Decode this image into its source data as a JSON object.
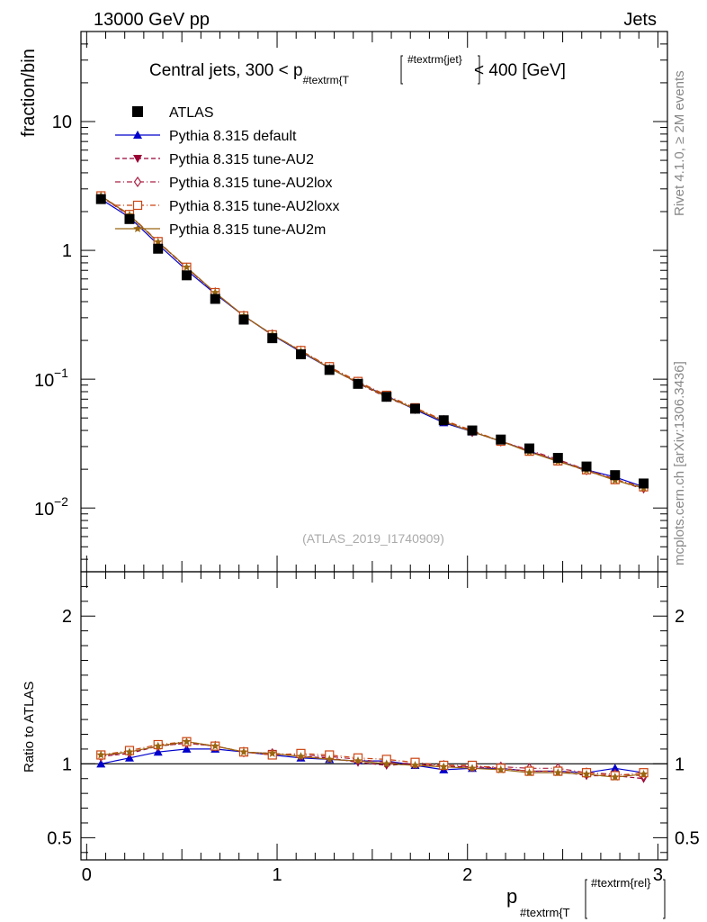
{
  "header": {
    "left": "13000 GeV pp",
    "right": "Jets"
  },
  "side_labels": {
    "rivet": "Rivet 4.1.0, ≥ 2M events",
    "mcplots": "mcplots.cern.ch [arXiv:1306.3436]"
  },
  "chart_data": [
    {
      "type": "line",
      "panel": "main",
      "yscale": "log",
      "title_prefix": "Central jets, 300 < p",
      "title_sub": "#textrm{T",
      "title_sup": "#textrm{jet}",
      "title_suffix": "< 400 [GeV]",
      "ylabel": "fraction/bin",
      "ylim": [
        0.0032,
        50
      ],
      "yticks": [
        {
          "v": 10,
          "label": "10"
        },
        {
          "v": 1,
          "label": "1"
        },
        {
          "v": 0.1,
          "base": "10",
          "exp": "−1"
        },
        {
          "v": 0.01,
          "base": "10",
          "exp": "−2"
        }
      ],
      "watermark": "(ATLAS_2019_I1740909)",
      "x": [
        0.075,
        0.225,
        0.375,
        0.525,
        0.675,
        0.825,
        0.975,
        1.125,
        1.275,
        1.425,
        1.575,
        1.725,
        1.875,
        2.025,
        2.175,
        2.325,
        2.475,
        2.625,
        2.775,
        2.925
      ],
      "series": [
        {
          "name": "ATLAS",
          "color": "#000000",
          "marker": "square",
          "line": "none",
          "values": [
            2.5,
            1.75,
            1.03,
            0.64,
            0.42,
            0.29,
            0.208,
            0.156,
            0.118,
            0.092,
            0.073,
            0.059,
            0.048,
            0.04,
            0.034,
            0.029,
            0.0245,
            0.021,
            0.018,
            0.0155
          ]
        },
        {
          "name": "Pythia 8.315 default",
          "color": "#0000cc",
          "marker": "triangle-up",
          "line": "solid",
          "values": [
            2.5,
            1.8,
            1.11,
            0.7,
            0.46,
            0.31,
            0.22,
            0.163,
            0.122,
            0.094,
            0.074,
            0.058,
            0.046,
            0.039,
            0.033,
            0.0276,
            0.0232,
            0.0198,
            0.0174,
            0.0146
          ]
        },
        {
          "name": "Pythia 8.315 tune-AU2",
          "color": "#990033",
          "marker": "triangle-down",
          "line": "dashed",
          "values": [
            2.62,
            1.86,
            1.16,
            0.73,
            0.47,
            0.31,
            0.222,
            0.165,
            0.123,
            0.093,
            0.072,
            0.059,
            0.047,
            0.039,
            0.033,
            0.0276,
            0.0232,
            0.0194,
            0.0166,
            0.014
          ]
        },
        {
          "name": "Pythia 8.315 tune-AU2lox",
          "color": "#aa2244",
          "marker": "diamond-open",
          "line": "dashdot",
          "values": [
            2.62,
            1.88,
            1.16,
            0.73,
            0.47,
            0.31,
            0.222,
            0.166,
            0.124,
            0.095,
            0.074,
            0.059,
            0.048,
            0.039,
            0.033,
            0.0282,
            0.0238,
            0.0198,
            0.0168,
            0.0143
          ]
        },
        {
          "name": "Pythia 8.315 tune-AU2loxx",
          "color": "#cc4411",
          "marker": "square-open",
          "line": "dashdot",
          "values": [
            2.65,
            1.9,
            1.17,
            0.74,
            0.47,
            0.31,
            0.221,
            0.167,
            0.125,
            0.096,
            0.075,
            0.06,
            0.048,
            0.04,
            0.033,
            0.0276,
            0.0232,
            0.0198,
            0.0166,
            0.0146
          ]
        },
        {
          "name": "Pythia 8.315 tune-AU2m",
          "color": "#996611",
          "marker": "star",
          "line": "solid",
          "values": [
            2.65,
            1.88,
            1.16,
            0.74,
            0.47,
            0.31,
            0.222,
            0.165,
            0.122,
            0.094,
            0.073,
            0.059,
            0.047,
            0.039,
            0.033,
            0.0272,
            0.023,
            0.0196,
            0.0164,
            0.0143
          ]
        }
      ]
    },
    {
      "type": "line",
      "panel": "ratio",
      "ylabel": "Ratio to ATLAS",
      "ylim": [
        0.35,
        2.3
      ],
      "yticks": [
        0.5,
        1,
        2
      ],
      "xlabel_main": "p",
      "xlabel_sub": "#textrm{T",
      "xlabel_sup": "#textrm{rel}",
      "xlim": [
        -0.03,
        3.05
      ],
      "xticks": [
        0,
        1,
        2,
        3
      ],
      "reference": 1,
      "series": [
        {
          "name": "Pythia 8.315 default",
          "values": [
            1.0,
            1.04,
            1.08,
            1.1,
            1.1,
            1.08,
            1.06,
            1.04,
            1.03,
            1.02,
            1.02,
            0.99,
            0.96,
            0.97,
            0.97,
            0.95,
            0.95,
            0.94,
            0.97,
            0.94
          ]
        },
        {
          "name": "Pythia 8.315 tune-AU2",
          "values": [
            1.05,
            1.07,
            1.12,
            1.14,
            1.12,
            1.08,
            1.07,
            1.05,
            1.04,
            1.01,
            0.99,
            1.0,
            0.98,
            0.98,
            0.97,
            0.95,
            0.95,
            0.92,
            0.92,
            0.9
          ]
        },
        {
          "name": "Pythia 8.315 tune-AU2lox",
          "values": [
            1.05,
            1.08,
            1.12,
            1.14,
            1.12,
            1.08,
            1.07,
            1.06,
            1.05,
            1.03,
            1.01,
            1.0,
            0.99,
            0.98,
            0.98,
            0.97,
            0.97,
            0.94,
            0.93,
            0.92
          ]
        },
        {
          "name": "Pythia 8.315 tune-AU2loxx",
          "values": [
            1.06,
            1.09,
            1.13,
            1.15,
            1.12,
            1.08,
            1.06,
            1.07,
            1.06,
            1.04,
            1.03,
            1.01,
            0.99,
            0.99,
            0.97,
            0.95,
            0.95,
            0.94,
            0.92,
            0.94
          ]
        },
        {
          "name": "Pythia 8.315 tune-AU2m",
          "values": [
            1.06,
            1.08,
            1.12,
            1.15,
            1.12,
            1.08,
            1.07,
            1.05,
            1.03,
            1.02,
            1.0,
            0.99,
            0.98,
            0.97,
            0.96,
            0.94,
            0.94,
            0.93,
            0.91,
            0.93
          ]
        }
      ]
    }
  ]
}
